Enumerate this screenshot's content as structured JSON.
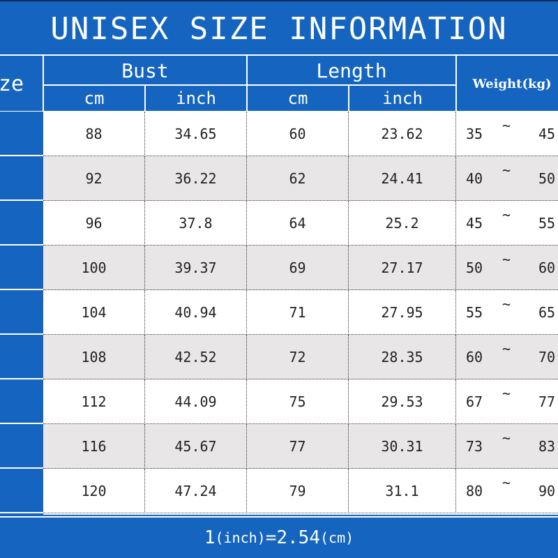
{
  "title": "UNISEX SIZE INFORMATION",
  "header": {
    "size_label": "ze",
    "bust_label": "Bust",
    "length_label": "Length",
    "weight_label": "Weight(kg)",
    "cm_label": "cm",
    "inch_label": "inch"
  },
  "rows": [
    {
      "bust_cm": "88",
      "bust_inch": "34.65",
      "length_cm": "60",
      "length_inch": "23.62",
      "weight_min": "35",
      "weight_max": "45"
    },
    {
      "bust_cm": "92",
      "bust_inch": "36.22",
      "length_cm": "62",
      "length_inch": "24.41",
      "weight_min": "40",
      "weight_max": "50"
    },
    {
      "bust_cm": "96",
      "bust_inch": "37.8",
      "length_cm": "64",
      "length_inch": "25.2",
      "weight_min": "45",
      "weight_max": "55"
    },
    {
      "bust_cm": "100",
      "bust_inch": "39.37",
      "length_cm": "69",
      "length_inch": "27.17",
      "weight_min": "50",
      "weight_max": "60"
    },
    {
      "bust_cm": "104",
      "bust_inch": "40.94",
      "length_cm": "71",
      "length_inch": "27.95",
      "weight_min": "55",
      "weight_max": "65"
    },
    {
      "bust_cm": "108",
      "bust_inch": "42.52",
      "length_cm": "72",
      "length_inch": "28.35",
      "weight_min": "60",
      "weight_max": "70"
    },
    {
      "bust_cm": "112",
      "bust_inch": "44.09",
      "length_cm": "75",
      "length_inch": "29.53",
      "weight_min": "67",
      "weight_max": "77"
    },
    {
      "bust_cm": "116",
      "bust_inch": "45.67",
      "length_cm": "77",
      "length_inch": "30.31",
      "weight_min": "73",
      "weight_max": "83"
    },
    {
      "bust_cm": "120",
      "bust_inch": "47.24",
      "length_cm": "79",
      "length_inch": "31.1",
      "weight_min": "80",
      "weight_max": "90"
    }
  ],
  "tilde": "~",
  "footer": {
    "one": "1",
    "inch_unit": "(inch)",
    "equals": "=2.54",
    "cm_unit": "(cm)"
  },
  "colors": {
    "header_blue": "#1565c0",
    "row_shade": "#e8e6e6",
    "text": "#222222"
  }
}
